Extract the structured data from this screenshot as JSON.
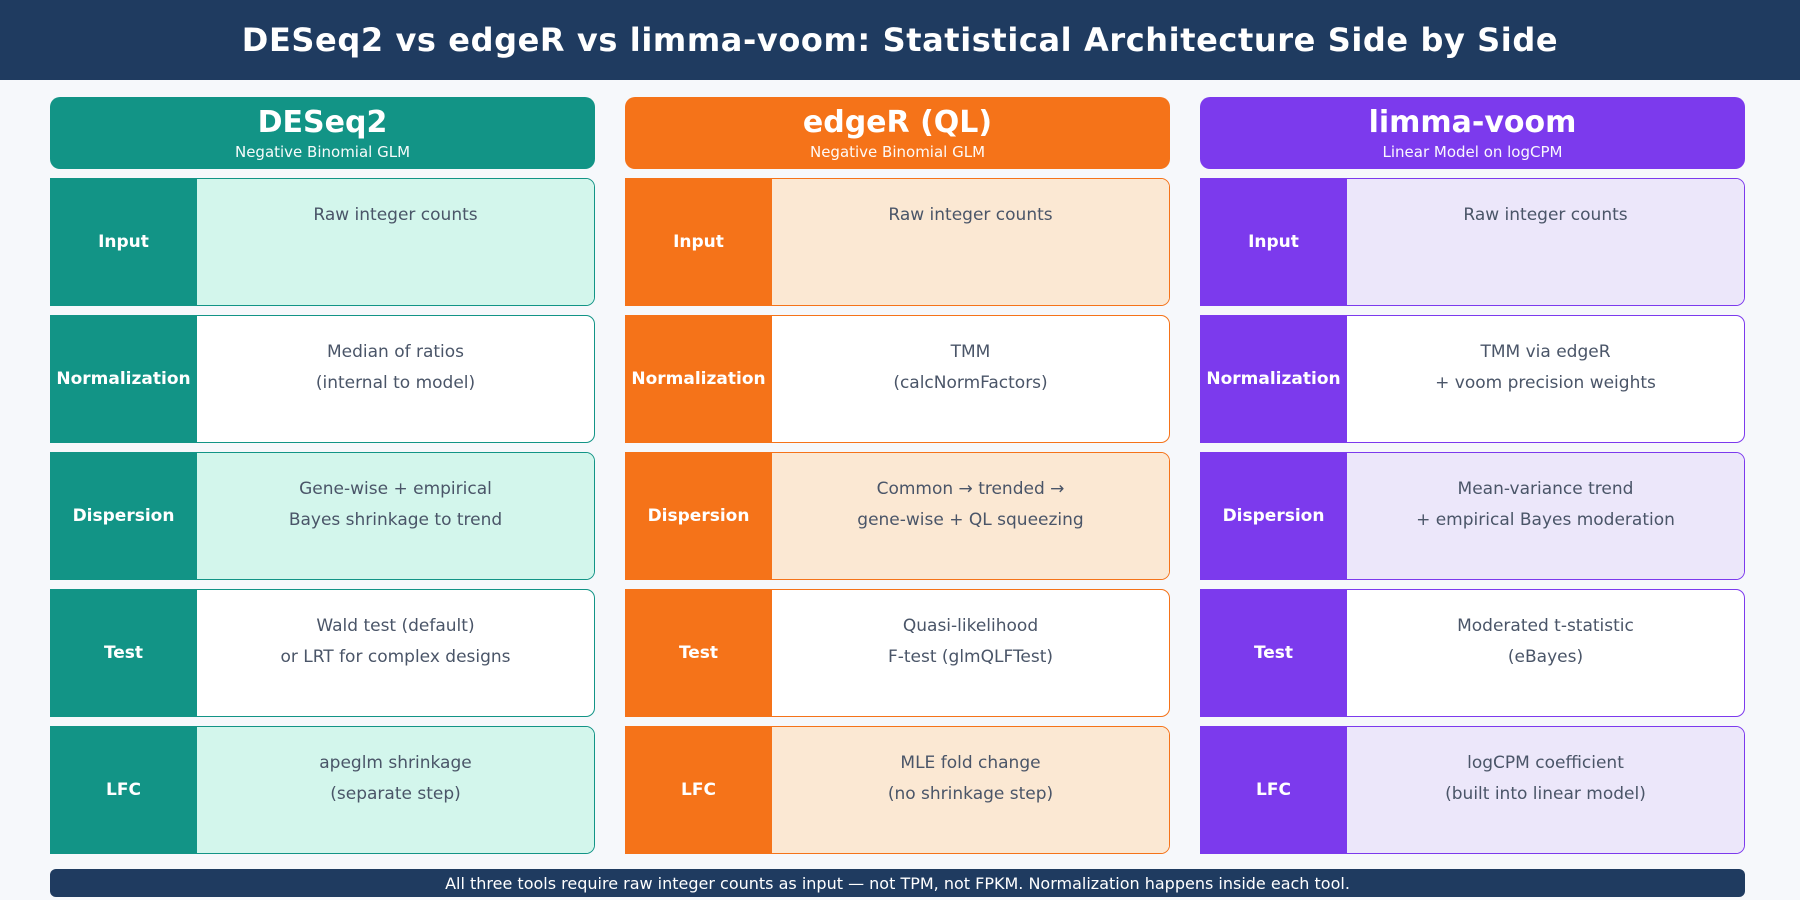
{
  "title": "DESeq2 vs edgeR vs limma-voom: Statistical Architecture Side by Side",
  "footer": "All three tools require raw integer counts as input — not TPM, not FPKM. Normalization happens inside each tool.",
  "colors": {
    "header_bar": "#1f3b60",
    "footer_bar": "#1f3b60",
    "page_background": "#f6f8fb",
    "body_text": "#4a5568"
  },
  "columns": [
    {
      "name": "DESeq2",
      "subtitle": "Negative Binomial GLM",
      "color": "#129486",
      "tint": "#d3f6ec",
      "rows": [
        {
          "label": "Input",
          "lines": [
            "Raw integer counts"
          ]
        },
        {
          "label": "Normalization",
          "lines": [
            "Median of ratios",
            "(internal to model)"
          ]
        },
        {
          "label": "Dispersion",
          "lines": [
            "Gene-wise + empirical",
            "Bayes shrinkage to trend"
          ]
        },
        {
          "label": "Test",
          "lines": [
            "Wald test (default)",
            "or LRT for complex designs"
          ]
        },
        {
          "label": "LFC",
          "lines": [
            "apeglm shrinkage",
            "(separate step)"
          ]
        }
      ]
    },
    {
      "name": "edgeR (QL)",
      "subtitle": "Negative Binomial GLM",
      "color": "#f57319",
      "tint": "#fbe8d3",
      "rows": [
        {
          "label": "Input",
          "lines": [
            "Raw integer counts"
          ]
        },
        {
          "label": "Normalization",
          "lines": [
            "TMM",
            "(calcNormFactors)"
          ]
        },
        {
          "label": "Dispersion",
          "lines": [
            "Common → trended →",
            "gene-wise + QL squeezing"
          ]
        },
        {
          "label": "Test",
          "lines": [
            "Quasi-likelihood",
            "F-test (glmQLFTest)"
          ]
        },
        {
          "label": "LFC",
          "lines": [
            "MLE fold change",
            "(no shrinkage step)"
          ]
        }
      ]
    },
    {
      "name": "limma-voom",
      "subtitle": "Linear Model on logCPM",
      "color": "#7c3aed",
      "tint": "#ece7fa",
      "rows": [
        {
          "label": "Input",
          "lines": [
            "Raw integer counts"
          ]
        },
        {
          "label": "Normalization",
          "lines": [
            "TMM via edgeR",
            "+ voom precision weights"
          ]
        },
        {
          "label": "Dispersion",
          "lines": [
            "Mean-variance trend",
            "+ empirical Bayes moderation"
          ]
        },
        {
          "label": "Test",
          "lines": [
            "Moderated t-statistic",
            "(eBayes)"
          ]
        },
        {
          "label": "LFC",
          "lines": [
            "logCPM coefficient",
            "(built into linear model)"
          ]
        }
      ]
    }
  ]
}
